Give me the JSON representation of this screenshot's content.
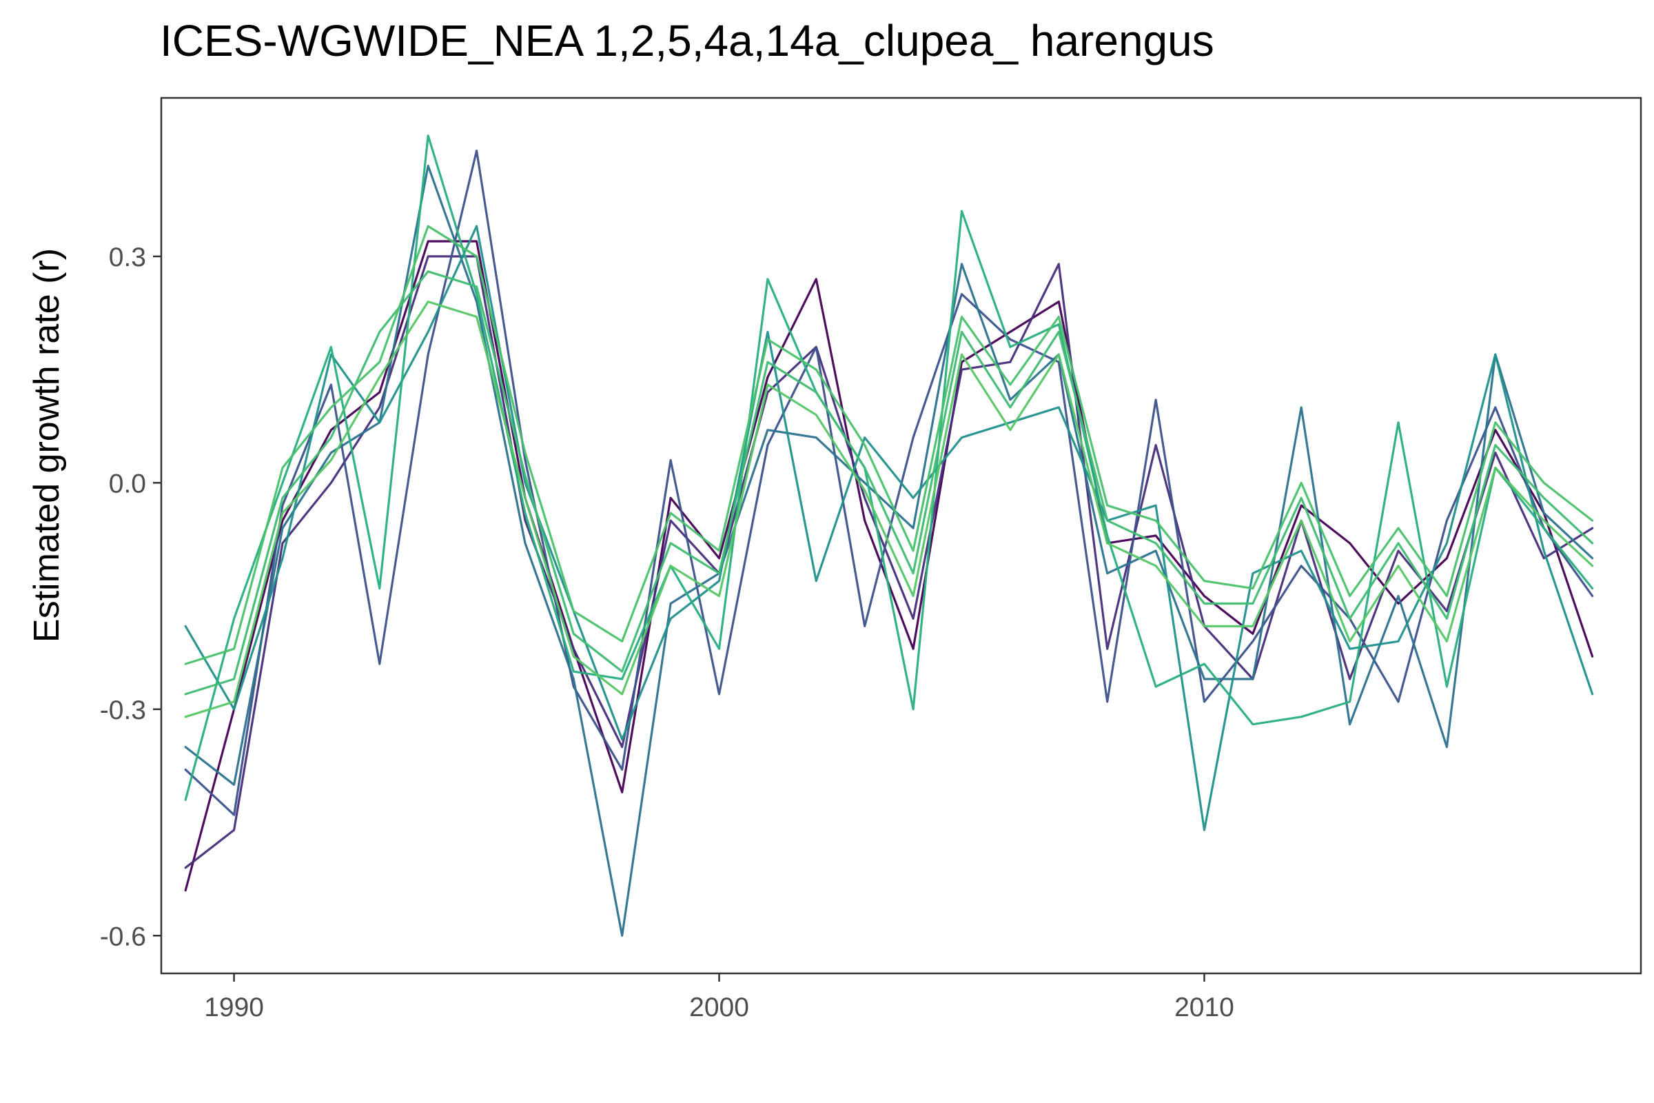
{
  "chart_data": {
    "type": "line",
    "title": "ICES-WGWIDE_NEA 1,2,5,4a,14a_clupea_ harengus",
    "xlabel": "",
    "ylabel": "Estimated growth rate (r)",
    "xlim": [
      1988.5,
      2019
    ],
    "ylim": [
      -0.65,
      0.51
    ],
    "x_ticks": [
      1990,
      2000,
      2010
    ],
    "x_tick_labels": [
      "1990",
      "2000",
      "2010"
    ],
    "y_ticks": [
      -0.6,
      -0.3,
      0.0,
      0.3
    ],
    "y_tick_labels": [
      "-0.6",
      "-0.3",
      "0.0",
      "0.3"
    ],
    "grid": false,
    "legend": "none",
    "colors": [
      "#440154",
      "#472d7b",
      "#3b528b",
      "#2c728e",
      "#21918c",
      "#28ae80",
      "#3fbc73",
      "#4ac16d",
      "#56c667"
    ],
    "x": [
      1989,
      1990,
      1991,
      1992,
      1993,
      1994,
      1995,
      1996,
      1997,
      1998,
      1999,
      2000,
      2001,
      2002,
      2003,
      2004,
      2005,
      2006,
      2007,
      2008,
      2009,
      2010,
      2011,
      2012,
      2013,
      2014,
      2015,
      2016,
      2017,
      2018
    ],
    "series": [
      {
        "values": [
          -0.54,
          -0.3,
          -0.05,
          0.07,
          0.12,
          0.32,
          0.32,
          -0.02,
          -0.22,
          -0.41,
          -0.02,
          -0.1,
          0.14,
          0.27,
          -0.05,
          -0.22,
          0.16,
          0.2,
          0.24,
          -0.08,
          -0.07,
          -0.15,
          -0.2,
          -0.03,
          -0.08,
          -0.16,
          -0.1,
          0.07,
          -0.04,
          -0.23
        ]
      },
      {
        "values": [
          -0.51,
          -0.46,
          -0.08,
          0.0,
          0.1,
          0.3,
          0.3,
          -0.05,
          -0.22,
          -0.35,
          -0.05,
          -0.12,
          0.12,
          0.18,
          -0.02,
          -0.18,
          0.15,
          0.16,
          0.29,
          -0.22,
          0.05,
          -0.19,
          -0.26,
          -0.05,
          -0.26,
          -0.09,
          -0.17,
          0.04,
          -0.1,
          -0.06
        ]
      },
      {
        "values": [
          -0.38,
          -0.44,
          -0.03,
          0.13,
          -0.24,
          0.17,
          0.44,
          0.03,
          -0.27,
          -0.38,
          0.03,
          -0.28,
          0.05,
          0.18,
          -0.19,
          0.06,
          0.25,
          0.19,
          0.16,
          -0.29,
          0.11,
          -0.29,
          -0.21,
          -0.11,
          -0.18,
          -0.29,
          -0.05,
          0.1,
          -0.06,
          -0.15
        ]
      },
      {
        "values": [
          -0.35,
          -0.4,
          -0.06,
          0.04,
          0.08,
          0.42,
          0.24,
          -0.08,
          -0.26,
          -0.6,
          -0.16,
          -0.12,
          0.07,
          0.06,
          0.0,
          -0.06,
          0.29,
          0.11,
          0.17,
          -0.12,
          -0.09,
          -0.26,
          -0.26,
          0.1,
          -0.32,
          -0.15,
          -0.35,
          0.17,
          -0.04,
          -0.1
        ]
      },
      {
        "values": [
          -0.19,
          -0.3,
          -0.1,
          0.17,
          0.08,
          0.2,
          0.34,
          0.0,
          -0.17,
          -0.34,
          -0.18,
          -0.13,
          0.2,
          -0.13,
          0.06,
          -0.02,
          0.06,
          0.08,
          0.1,
          -0.05,
          -0.03,
          -0.46,
          -0.12,
          -0.09,
          -0.22,
          -0.21,
          -0.08,
          0.17,
          -0.09,
          -0.28
        ]
      },
      {
        "values": [
          -0.42,
          -0.18,
          0.0,
          0.18,
          -0.14,
          0.46,
          0.25,
          -0.04,
          -0.25,
          -0.26,
          -0.11,
          -0.22,
          0.27,
          0.12,
          0.02,
          -0.3,
          0.36,
          0.18,
          0.21,
          -0.07,
          -0.27,
          -0.24,
          -0.32,
          -0.31,
          -0.29,
          0.08,
          -0.27,
          0.02,
          -0.06,
          -0.14
        ]
      },
      {
        "values": [
          -0.28,
          -0.26,
          -0.02,
          0.06,
          0.2,
          0.28,
          0.26,
          0.01,
          -0.2,
          -0.25,
          -0.08,
          -0.12,
          0.16,
          0.12,
          0.02,
          -0.12,
          0.2,
          0.1,
          0.2,
          -0.05,
          -0.08,
          -0.16,
          -0.16,
          -0.02,
          -0.18,
          -0.08,
          -0.18,
          0.05,
          -0.02,
          -0.08
        ]
      },
      {
        "values": [
          -0.24,
          -0.22,
          0.02,
          0.1,
          0.16,
          0.34,
          0.3,
          0.04,
          -0.17,
          -0.21,
          -0.04,
          -0.09,
          0.19,
          0.15,
          0.05,
          -0.09,
          0.22,
          0.13,
          0.22,
          -0.03,
          -0.05,
          -0.13,
          -0.14,
          0.0,
          -0.15,
          -0.06,
          -0.15,
          0.08,
          0.0,
          -0.05
        ]
      },
      {
        "values": [
          -0.31,
          -0.29,
          -0.04,
          0.03,
          0.14,
          0.24,
          0.22,
          -0.02,
          -0.23,
          -0.28,
          -0.11,
          -0.15,
          0.13,
          0.09,
          -0.01,
          -0.15,
          0.17,
          0.07,
          0.17,
          -0.08,
          -0.11,
          -0.19,
          -0.19,
          -0.05,
          -0.21,
          -0.11,
          -0.21,
          0.02,
          -0.05,
          -0.11
        ]
      }
    ]
  }
}
